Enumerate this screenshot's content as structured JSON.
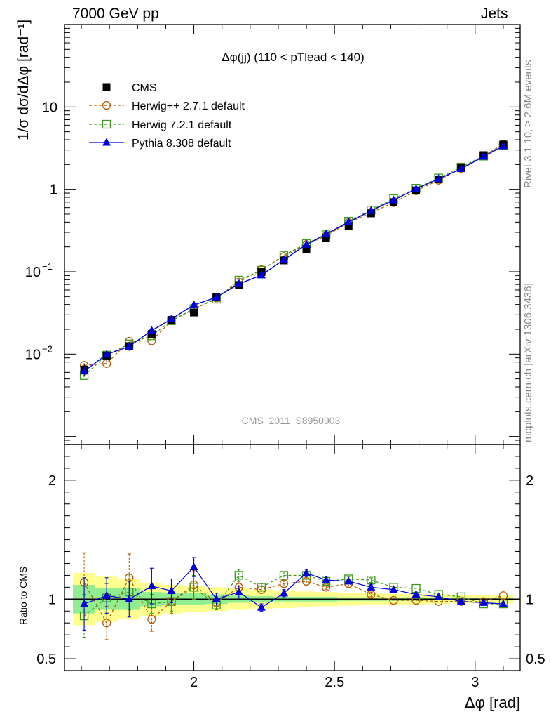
{
  "header": {
    "left": "7000 GeV pp",
    "right": "Jets"
  },
  "side": {
    "rivet": "Rivet 3.1.10, ≥ 2.6M events",
    "mcplots": "mcplots.cern.ch [arXiv:1306.3436]"
  },
  "chart_data": {
    "type": "scatter",
    "title": "Δφ(jj) (110 < pTlead <  140)",
    "watermark": "CMS_2011_S8950903",
    "xlabel": "Δφ [rad]",
    "ylabel_main": "1/σ dσ/dΔφ [rad⁻¹]",
    "ylabel_ratio": "Ratio to CMS",
    "xlim": [
      1.54,
      3.16
    ],
    "ylim_main": [
      0.0008,
      100
    ],
    "yscale_main": "log",
    "ylim_ratio": [
      0.4,
      2.3
    ],
    "x_ticks": [
      "2",
      "2.5",
      "3"
    ],
    "y_ticks_main": [
      "10⁻²",
      "10⁻¹",
      "1",
      "10"
    ],
    "y_ticks_ratio": [
      "0.5",
      "1",
      "2"
    ],
    "legend_position": "top-left",
    "x": [
      1.61,
      1.69,
      1.77,
      1.85,
      1.92,
      2.0,
      2.08,
      2.16,
      2.24,
      2.32,
      2.4,
      2.47,
      2.55,
      2.63,
      2.71,
      2.79,
      2.87,
      2.95,
      3.03,
      3.1
    ],
    "series": [
      {
        "name": "CMS",
        "color": "#000000",
        "marker": "square-filled",
        "values": [
          0.0065,
          0.0096,
          0.0125,
          0.0175,
          0.026,
          0.032,
          0.049,
          0.069,
          0.099,
          0.137,
          0.188,
          0.258,
          0.36,
          0.51,
          0.7,
          0.97,
          1.32,
          1.82,
          2.6,
          3.5
        ]
      },
      {
        "name": "Herwig++ 2.7.1 default",
        "color": "#b35900",
        "marker": "circle-open",
        "dashed": true,
        "values": [
          0.0073,
          0.0077,
          0.0143,
          0.0145,
          0.0255,
          0.035,
          0.048,
          0.075,
          0.106,
          0.153,
          0.214,
          0.272,
          0.395,
          0.52,
          0.69,
          0.96,
          1.29,
          1.79,
          2.55,
          3.55
        ]
      },
      {
        "name": "Herwig 7.2.1 default",
        "color": "#3a9a1a",
        "marker": "square-open",
        "dashed": true,
        "values": [
          0.0055,
          0.0097,
          0.0133,
          0.0167,
          0.0254,
          0.0355,
          0.0465,
          0.079,
          0.104,
          0.158,
          0.22,
          0.28,
          0.41,
          0.56,
          0.77,
          1.03,
          1.37,
          1.86,
          2.53,
          3.4
        ]
      },
      {
        "name": "Pythia 8.308 default",
        "color": "#0000dd",
        "marker": "triangle-filled",
        "values": [
          0.0062,
          0.0099,
          0.0124,
          0.0193,
          0.0266,
          0.0395,
          0.049,
          0.071,
          0.091,
          0.14,
          0.214,
          0.286,
          0.4,
          0.55,
          0.74,
          1.01,
          1.34,
          1.77,
          2.5,
          3.35
        ]
      }
    ],
    "ratio_series": [
      {
        "name": "Herwig++ 2.7.1 default",
        "values": [
          1.14,
          0.8,
          1.18,
          0.83,
          0.98,
          1.12,
          0.97,
          1.1,
          1.08,
          1.13,
          1.15,
          1.1,
          1.13,
          1.04,
          0.99,
          0.99,
          0.98,
          0.98,
          0.98,
          1.03
        ],
        "err": [
          0.25,
          0.14,
          0.2,
          0.1,
          0.1,
          0.12,
          0.05,
          0.05,
          0.03,
          0.03,
          0.03,
          0.02,
          0.02,
          0.02,
          0.01,
          0.01,
          0.01,
          0.01,
          0.01,
          0.01
        ]
      },
      {
        "name": "Herwig 7.2.1 default",
        "values": [
          0.86,
          1.01,
          1.06,
          0.96,
          0.98,
          1.1,
          0.95,
          1.2,
          1.1,
          1.2,
          1.2,
          1.15,
          1.17,
          1.16,
          1.1,
          1.09,
          1.04,
          1.02,
          0.96,
          0.96
        ],
        "err": [
          0.18,
          0.12,
          0.15,
          0.08,
          0.08,
          0.1,
          0.04,
          0.05,
          0.03,
          0.03,
          0.03,
          0.02,
          0.02,
          0.02,
          0.01,
          0.01,
          0.01,
          0.01,
          0.01,
          0.01
        ]
      },
      {
        "name": "Pythia 8.308 default",
        "values": [
          0.96,
          1.03,
          1.0,
          1.11,
          1.07,
          1.27,
          1.0,
          1.06,
          0.93,
          1.05,
          1.22,
          1.16,
          1.15,
          1.1,
          1.08,
          1.04,
          1.02,
          0.98,
          0.97,
          0.96
        ],
        "err": [
          0.22,
          0.15,
          0.15,
          0.15,
          0.1,
          0.08,
          0.05,
          0.05,
          0.03,
          0.03,
          0.03,
          0.02,
          0.02,
          0.02,
          0.01,
          0.01,
          0.01,
          0.01,
          0.01,
          0.01
        ]
      }
    ],
    "band_stat_halfwidth": [
      0.12,
      0.09,
      0.09,
      0.06,
      0.05,
      0.05,
      0.04,
      0.03,
      0.025,
      0.02,
      0.02,
      0.02,
      0.015,
      0.015,
      0.015,
      0.015,
      0.01,
      0.01,
      0.01,
      0.01
    ],
    "band_total_halfwidth": [
      0.22,
      0.19,
      0.17,
      0.14,
      0.12,
      0.11,
      0.1,
      0.09,
      0.08,
      0.075,
      0.065,
      0.06,
      0.055,
      0.05,
      0.045,
      0.045,
      0.04,
      0.035,
      0.035,
      0.035
    ],
    "band_colors": {
      "stat": "#90ee90",
      "total": "#ffff90"
    },
    "data_errors_main": [
      0.0012,
      0.0015,
      0.0015,
      0.002,
      0.002,
      0.002,
      0.003,
      0.004,
      0.005,
      0.006,
      0.008,
      0.01,
      0.015,
      0.02,
      0.03,
      0.04,
      0.05,
      0.07,
      0.09,
      0.12
    ]
  }
}
